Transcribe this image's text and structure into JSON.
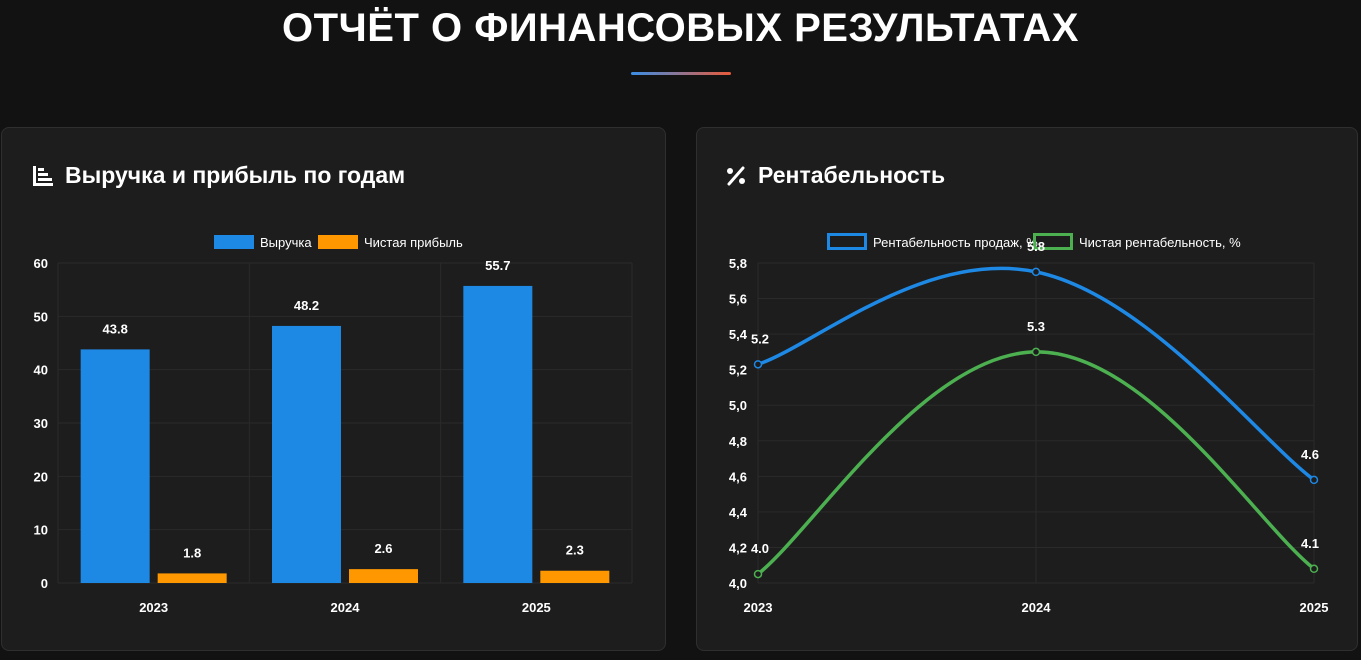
{
  "header": {
    "title": "ОТЧЁТ О ФИНАНСОВЫХ РЕЗУЛЬТАТАХ"
  },
  "colors": {
    "background": "#121212",
    "card": "#1d1d1d",
    "revenue": "#1e88e5",
    "profit": "#ff9800",
    "sales_margin": "#1e88e5",
    "net_margin": "#4caf50",
    "accent_start": "#3a8ee6",
    "accent_end": "#e85a3a"
  },
  "bar_card": {
    "title": "Выручка и прибыль по годам",
    "icon": "chart-bar-icon"
  },
  "line_card": {
    "title": "Рентабельность",
    "icon": "percent-icon"
  },
  "chart_data": [
    {
      "type": "bar",
      "categories": [
        "2023",
        "2024",
        "2025"
      ],
      "series": [
        {
          "name": "Выручка",
          "values": [
            43.8,
            48.2,
            55.7
          ]
        },
        {
          "name": "Чистая прибыль",
          "values": [
            1.8,
            2.6,
            2.3
          ]
        }
      ],
      "data_labels": {
        "Выручка": [
          "43.8",
          "48.2",
          "55.7"
        ],
        "Чистая прибыль": [
          "1.8",
          "2.6",
          "2.3"
        ]
      },
      "yticks": [
        "0",
        "10",
        "20",
        "30",
        "40",
        "50",
        "60"
      ],
      "ylim": [
        0,
        60
      ],
      "legend": "top-center",
      "grid": true
    },
    {
      "type": "line",
      "categories": [
        "2023",
        "2024",
        "2025"
      ],
      "series": [
        {
          "name": "Рентабельность продаж, %",
          "values": [
            5.23,
            5.75,
            4.58
          ]
        },
        {
          "name": "Чистая рентабельность, %",
          "values": [
            4.05,
            5.3,
            4.08
          ]
        }
      ],
      "data_labels": {
        "Рентабельность продаж, %": [
          "5.2",
          "5.8",
          "4.6"
        ],
        "Чистая рентабельность, %": [
          "4.0",
          "5.3",
          "4.1"
        ]
      },
      "yticks": [
        "4,0",
        "4,2",
        "4,4",
        "4,6",
        "4,8",
        "5,0",
        "5,2",
        "5,4",
        "5,6",
        "5,8"
      ],
      "ylim": [
        4.0,
        5.8
      ],
      "legend": "top-center",
      "grid": true
    }
  ]
}
